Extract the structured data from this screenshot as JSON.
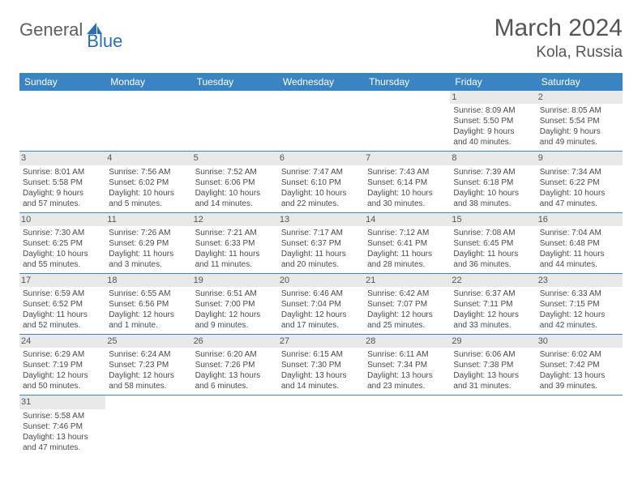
{
  "logo": {
    "text1": "General",
    "text2": "Blue"
  },
  "title": "March 2024",
  "location": "Kola, Russia",
  "colors": {
    "header_bg": "#3b84c4",
    "header_text": "#ffffff",
    "daynum_bg": "#e9e9e9",
    "border": "#3b84c4",
    "text": "#4a4a4a",
    "logo_gray": "#5f5f5f",
    "logo_blue": "#2d6fb5"
  },
  "fonts": {
    "title_size": 30,
    "location_size": 19,
    "head_size": 12,
    "body_size": 10
  },
  "day_headers": [
    "Sunday",
    "Monday",
    "Tuesday",
    "Wednesday",
    "Thursday",
    "Friday",
    "Saturday"
  ],
  "weeks": [
    [
      null,
      null,
      null,
      null,
      null,
      {
        "n": "1",
        "sunrise": "Sunrise: 8:09 AM",
        "sunset": "Sunset: 5:50 PM",
        "day1": "Daylight: 9 hours",
        "day2": "and 40 minutes."
      },
      {
        "n": "2",
        "sunrise": "Sunrise: 8:05 AM",
        "sunset": "Sunset: 5:54 PM",
        "day1": "Daylight: 9 hours",
        "day2": "and 49 minutes."
      }
    ],
    [
      {
        "n": "3",
        "sunrise": "Sunrise: 8:01 AM",
        "sunset": "Sunset: 5:58 PM",
        "day1": "Daylight: 9 hours",
        "day2": "and 57 minutes."
      },
      {
        "n": "4",
        "sunrise": "Sunrise: 7:56 AM",
        "sunset": "Sunset: 6:02 PM",
        "day1": "Daylight: 10 hours",
        "day2": "and 5 minutes."
      },
      {
        "n": "5",
        "sunrise": "Sunrise: 7:52 AM",
        "sunset": "Sunset: 6:06 PM",
        "day1": "Daylight: 10 hours",
        "day2": "and 14 minutes."
      },
      {
        "n": "6",
        "sunrise": "Sunrise: 7:47 AM",
        "sunset": "Sunset: 6:10 PM",
        "day1": "Daylight: 10 hours",
        "day2": "and 22 minutes."
      },
      {
        "n": "7",
        "sunrise": "Sunrise: 7:43 AM",
        "sunset": "Sunset: 6:14 PM",
        "day1": "Daylight: 10 hours",
        "day2": "and 30 minutes."
      },
      {
        "n": "8",
        "sunrise": "Sunrise: 7:39 AM",
        "sunset": "Sunset: 6:18 PM",
        "day1": "Daylight: 10 hours",
        "day2": "and 38 minutes."
      },
      {
        "n": "9",
        "sunrise": "Sunrise: 7:34 AM",
        "sunset": "Sunset: 6:22 PM",
        "day1": "Daylight: 10 hours",
        "day2": "and 47 minutes."
      }
    ],
    [
      {
        "n": "10",
        "sunrise": "Sunrise: 7:30 AM",
        "sunset": "Sunset: 6:25 PM",
        "day1": "Daylight: 10 hours",
        "day2": "and 55 minutes."
      },
      {
        "n": "11",
        "sunrise": "Sunrise: 7:26 AM",
        "sunset": "Sunset: 6:29 PM",
        "day1": "Daylight: 11 hours",
        "day2": "and 3 minutes."
      },
      {
        "n": "12",
        "sunrise": "Sunrise: 7:21 AM",
        "sunset": "Sunset: 6:33 PM",
        "day1": "Daylight: 11 hours",
        "day2": "and 11 minutes."
      },
      {
        "n": "13",
        "sunrise": "Sunrise: 7:17 AM",
        "sunset": "Sunset: 6:37 PM",
        "day1": "Daylight: 11 hours",
        "day2": "and 20 minutes."
      },
      {
        "n": "14",
        "sunrise": "Sunrise: 7:12 AM",
        "sunset": "Sunset: 6:41 PM",
        "day1": "Daylight: 11 hours",
        "day2": "and 28 minutes."
      },
      {
        "n": "15",
        "sunrise": "Sunrise: 7:08 AM",
        "sunset": "Sunset: 6:45 PM",
        "day1": "Daylight: 11 hours",
        "day2": "and 36 minutes."
      },
      {
        "n": "16",
        "sunrise": "Sunrise: 7:04 AM",
        "sunset": "Sunset: 6:48 PM",
        "day1": "Daylight: 11 hours",
        "day2": "and 44 minutes."
      }
    ],
    [
      {
        "n": "17",
        "sunrise": "Sunrise: 6:59 AM",
        "sunset": "Sunset: 6:52 PM",
        "day1": "Daylight: 11 hours",
        "day2": "and 52 minutes."
      },
      {
        "n": "18",
        "sunrise": "Sunrise: 6:55 AM",
        "sunset": "Sunset: 6:56 PM",
        "day1": "Daylight: 12 hours",
        "day2": "and 1 minute."
      },
      {
        "n": "19",
        "sunrise": "Sunrise: 6:51 AM",
        "sunset": "Sunset: 7:00 PM",
        "day1": "Daylight: 12 hours",
        "day2": "and 9 minutes."
      },
      {
        "n": "20",
        "sunrise": "Sunrise: 6:46 AM",
        "sunset": "Sunset: 7:04 PM",
        "day1": "Daylight: 12 hours",
        "day2": "and 17 minutes."
      },
      {
        "n": "21",
        "sunrise": "Sunrise: 6:42 AM",
        "sunset": "Sunset: 7:07 PM",
        "day1": "Daylight: 12 hours",
        "day2": "and 25 minutes."
      },
      {
        "n": "22",
        "sunrise": "Sunrise: 6:37 AM",
        "sunset": "Sunset: 7:11 PM",
        "day1": "Daylight: 12 hours",
        "day2": "and 33 minutes."
      },
      {
        "n": "23",
        "sunrise": "Sunrise: 6:33 AM",
        "sunset": "Sunset: 7:15 PM",
        "day1": "Daylight: 12 hours",
        "day2": "and 42 minutes."
      }
    ],
    [
      {
        "n": "24",
        "sunrise": "Sunrise: 6:29 AM",
        "sunset": "Sunset: 7:19 PM",
        "day1": "Daylight: 12 hours",
        "day2": "and 50 minutes."
      },
      {
        "n": "25",
        "sunrise": "Sunrise: 6:24 AM",
        "sunset": "Sunset: 7:23 PM",
        "day1": "Daylight: 12 hours",
        "day2": "and 58 minutes."
      },
      {
        "n": "26",
        "sunrise": "Sunrise: 6:20 AM",
        "sunset": "Sunset: 7:26 PM",
        "day1": "Daylight: 13 hours",
        "day2": "and 6 minutes."
      },
      {
        "n": "27",
        "sunrise": "Sunrise: 6:15 AM",
        "sunset": "Sunset: 7:30 PM",
        "day1": "Daylight: 13 hours",
        "day2": "and 14 minutes."
      },
      {
        "n": "28",
        "sunrise": "Sunrise: 6:11 AM",
        "sunset": "Sunset: 7:34 PM",
        "day1": "Daylight: 13 hours",
        "day2": "and 23 minutes."
      },
      {
        "n": "29",
        "sunrise": "Sunrise: 6:06 AM",
        "sunset": "Sunset: 7:38 PM",
        "day1": "Daylight: 13 hours",
        "day2": "and 31 minutes."
      },
      {
        "n": "30",
        "sunrise": "Sunrise: 6:02 AM",
        "sunset": "Sunset: 7:42 PM",
        "day1": "Daylight: 13 hours",
        "day2": "and 39 minutes."
      }
    ],
    [
      {
        "n": "31",
        "sunrise": "Sunrise: 5:58 AM",
        "sunset": "Sunset: 7:46 PM",
        "day1": "Daylight: 13 hours",
        "day2": "and 47 minutes."
      },
      null,
      null,
      null,
      null,
      null,
      null
    ]
  ]
}
